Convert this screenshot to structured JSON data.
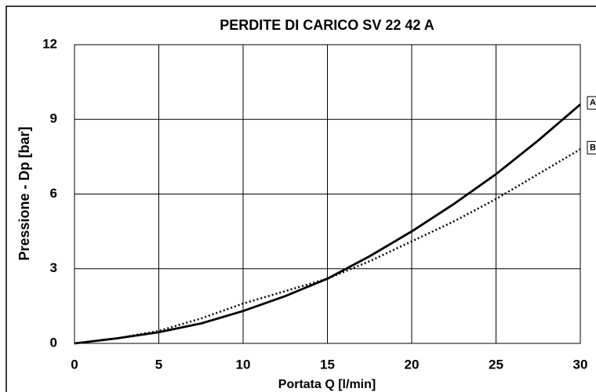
{
  "chart_data": {
    "type": "line",
    "title": "PERDITE DI CARICO SV 22 42 A",
    "x_label": "Portata Q [l/min]",
    "y_label": "Pressione - Dp [bar]",
    "x": [
      0,
      2.5,
      5,
      7.5,
      10,
      12.5,
      15,
      17.5,
      20,
      22.5,
      25,
      27.5,
      30
    ],
    "series": [
      {
        "name": "A",
        "color": "#000000",
        "style": "solid",
        "values": [
          0,
          0.2,
          0.45,
          0.8,
          1.3,
          1.9,
          2.6,
          3.5,
          4.5,
          5.6,
          6.8,
          8.15,
          9.6
        ]
      },
      {
        "name": "B",
        "color": "#000000",
        "style": "dotted",
        "values": [
          0,
          0.2,
          0.5,
          1.0,
          1.6,
          2.1,
          2.6,
          3.3,
          4.1,
          4.9,
          5.8,
          6.8,
          7.8
        ]
      }
    ],
    "xlim": [
      0,
      30
    ],
    "xticks": [
      0,
      5,
      10,
      15,
      20,
      25,
      30
    ],
    "ylim": [
      0,
      12
    ],
    "yticks": [
      0,
      3,
      6,
      9,
      12
    ],
    "grid": true
  }
}
